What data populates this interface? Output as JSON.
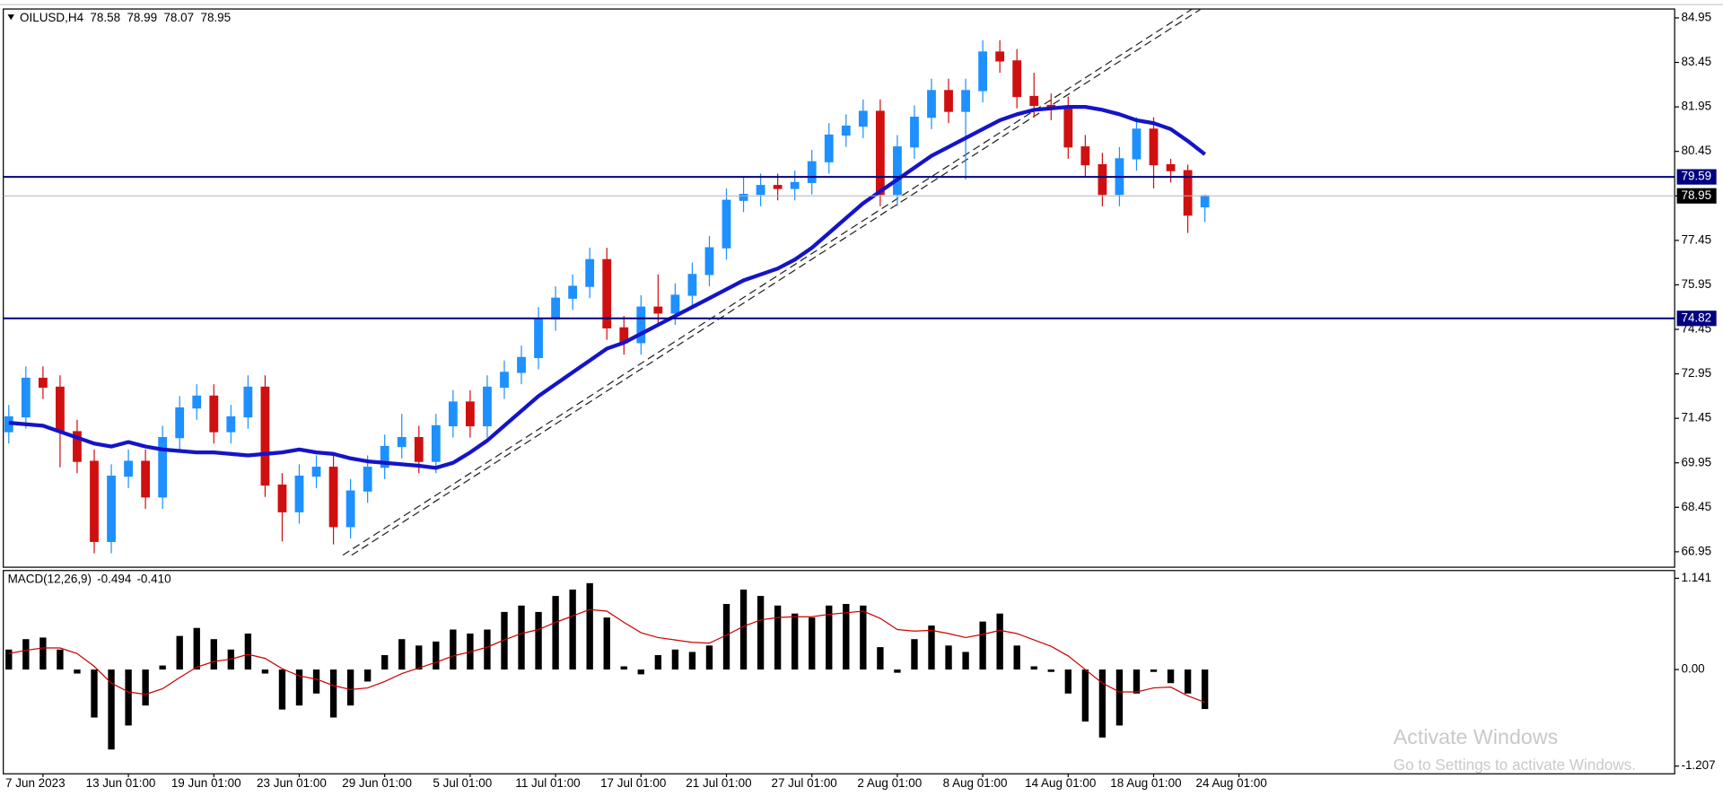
{
  "chart_data": [
    {
      "type": "candlestick",
      "title": "OILUSD,H4",
      "ohlc_header": [
        78.58,
        78.99,
        78.07,
        78.95
      ],
      "categories": [
        null,
        null,
        "7 Jun 2023",
        null,
        null,
        null,
        null,
        "13 Jun 01:00",
        null,
        null,
        null,
        null,
        "19 Jun 01:00",
        null,
        null,
        null,
        null,
        "23 Jun 01:00",
        null,
        null,
        null,
        null,
        "29 Jun 01:00",
        null,
        null,
        null,
        null,
        "5 Jul 01:00",
        null,
        null,
        null,
        null,
        "11 Jul 01:00",
        null,
        null,
        null,
        null,
        "17 Jul 01:00",
        null,
        null,
        null,
        null,
        "21 Jul 01:00",
        null,
        null,
        null,
        null,
        "27 Jul 01:00",
        null,
        null,
        null,
        null,
        "2 Aug 01:00",
        null,
        null,
        null,
        null,
        "8 Aug 01:00",
        null,
        null,
        null,
        null,
        "14 Aug 01:00",
        null,
        null,
        null,
        null,
        "18 Aug 01:00",
        null,
        null,
        null,
        null,
        "24 Aug 01:00"
      ],
      "open": [
        71.0,
        71.5,
        72.8,
        72.5,
        71.0,
        70.0,
        67.3,
        69.5,
        70.0,
        68.8,
        70.8,
        71.8,
        72.2,
        71.0,
        71.5,
        72.5,
        69.2,
        68.3,
        69.5,
        69.8,
        67.8,
        69.0,
        69.8,
        70.5,
        70.8,
        70.0,
        71.2,
        72.0,
        71.2,
        72.5,
        73.0,
        73.5,
        74.8,
        75.5,
        75.9,
        76.8,
        74.5,
        74.0,
        75.2,
        75.0,
        75.6,
        76.3,
        77.2,
        78.8,
        79.0,
        79.3,
        79.2,
        79.4,
        80.1,
        81.0,
        81.3,
        81.8,
        79.0,
        80.6,
        81.6,
        82.5,
        81.8,
        82.5,
        83.8,
        83.5,
        82.3,
        82.0,
        81.9,
        80.6,
        80.0,
        79.0,
        80.2,
        81.2,
        80.0,
        79.8,
        78.58,
        null,
        null
      ],
      "high": [
        71.9,
        73.2,
        73.2,
        72.9,
        71.4,
        70.4,
        69.9,
        70.4,
        70.4,
        71.2,
        72.2,
        72.6,
        72.6,
        71.9,
        72.9,
        72.9,
        69.6,
        69.9,
        70.2,
        70.2,
        69.4,
        70.2,
        70.9,
        71.6,
        71.2,
        71.6,
        72.4,
        72.4,
        72.9,
        73.4,
        73.9,
        75.2,
        75.9,
        76.3,
        77.2,
        77.2,
        74.9,
        75.6,
        76.3,
        76.0,
        76.7,
        77.6,
        79.2,
        79.6,
        79.7,
        79.7,
        79.8,
        80.5,
        81.4,
        81.7,
        82.2,
        82.2,
        81.0,
        82.0,
        82.9,
        82.9,
        82.9,
        84.2,
        84.2,
        83.9,
        83.1,
        82.4,
        82.3,
        81.0,
        80.4,
        80.6,
        81.6,
        81.6,
        80.2,
        80.0,
        78.99,
        null,
        null
      ],
      "low": [
        70.6,
        71.1,
        72.1,
        69.8,
        69.6,
        66.9,
        66.9,
        69.1,
        68.4,
        68.4,
        70.4,
        71.4,
        70.6,
        70.6,
        71.1,
        68.8,
        67.3,
        67.9,
        69.1,
        67.2,
        67.4,
        68.6,
        69.4,
        70.1,
        69.6,
        69.6,
        70.8,
        70.8,
        70.8,
        72.1,
        72.6,
        73.1,
        74.4,
        75.1,
        75.5,
        74.1,
        73.6,
        73.6,
        74.6,
        74.6,
        75.2,
        75.9,
        76.8,
        78.4,
        78.6,
        78.8,
        78.8,
        79.0,
        79.7,
        80.6,
        80.9,
        78.6,
        78.6,
        80.2,
        81.2,
        81.4,
        79.5,
        82.1,
        83.1,
        81.9,
        81.6,
        81.5,
        80.2,
        79.6,
        78.6,
        78.6,
        79.8,
        79.2,
        79.4,
        77.7,
        78.07,
        null,
        null
      ],
      "close": [
        71.5,
        72.8,
        72.5,
        71.0,
        70.0,
        67.3,
        69.5,
        70.0,
        68.8,
        70.8,
        71.8,
        72.2,
        71.0,
        71.5,
        72.5,
        69.2,
        68.3,
        69.5,
        69.8,
        67.8,
        69.0,
        69.8,
        70.5,
        70.8,
        70.0,
        71.2,
        72.0,
        71.2,
        72.5,
        73.0,
        73.5,
        74.8,
        75.5,
        75.9,
        76.8,
        74.5,
        74.0,
        75.2,
        75.0,
        75.6,
        76.3,
        77.2,
        78.8,
        79.0,
        79.3,
        79.2,
        79.4,
        80.1,
        81.0,
        81.3,
        81.8,
        79.0,
        80.6,
        81.6,
        82.5,
        81.8,
        82.5,
        83.8,
        83.5,
        82.3,
        82.0,
        81.9,
        80.6,
        80.0,
        79.0,
        80.2,
        81.2,
        80.0,
        79.8,
        78.3,
        78.95,
        null,
        null
      ],
      "up_color": "#1e90ff",
      "down_color": "#d01010",
      "series": [
        {
          "color": "#1414c8",
          "values": [
            71.3,
            71.25,
            71.2,
            71.0,
            70.8,
            70.6,
            70.5,
            70.65,
            70.5,
            70.4,
            70.35,
            70.3,
            70.3,
            70.25,
            70.2,
            70.25,
            70.3,
            70.4,
            70.3,
            70.25,
            70.1,
            70.0,
            69.95,
            69.9,
            69.85,
            69.78,
            69.95,
            70.3,
            70.7,
            71.2,
            71.7,
            72.2,
            72.6,
            73.0,
            73.4,
            73.8,
            74.0,
            74.3,
            74.6,
            74.9,
            75.2,
            75.5,
            75.8,
            76.1,
            76.3,
            76.5,
            76.8,
            77.2,
            77.7,
            78.2,
            78.7,
            79.1,
            79.5,
            79.9,
            80.3,
            80.6,
            80.9,
            81.2,
            81.5,
            81.7,
            81.85,
            81.9,
            81.95,
            81.95,
            81.85,
            81.7,
            81.5,
            81.4,
            81.2,
            80.8,
            80.35,
            null,
            null
          ]
        }
      ],
      "hlines": [
        {
          "value": 79.59,
          "color": "#000080"
        },
        {
          "value": 74.82,
          "color": "#000080"
        }
      ],
      "ylim": [
        66.43,
        85.25
      ],
      "yticks": [
        84.95,
        83.45,
        81.95,
        80.45,
        78.95,
        77.45,
        75.95,
        74.45,
        72.95,
        71.45,
        69.95,
        68.45,
        66.95
      ]
    },
    {
      "type": "macd",
      "title": "MACD(12,26,9)",
      "header": [
        -0.494,
        {
          "value": -0.41,
          "label": "-0.410"
        }
      ],
      "series": [
        {
          "color": "#000000",
          "values": [
            0.25,
            0.38,
            0.4,
            0.25,
            -0.05,
            -0.6,
            -1.0,
            -0.7,
            -0.45,
            0.05,
            0.42,
            0.52,
            0.38,
            0.25,
            0.45,
            -0.05,
            -0.5,
            -0.45,
            -0.3,
            -0.6,
            -0.45,
            -0.15,
            0.18,
            0.38,
            0.3,
            0.35,
            0.5,
            0.45,
            0.5,
            0.72,
            0.8,
            0.72,
            0.92,
            1.0,
            1.08,
            0.65,
            0.04,
            -0.06,
            0.18,
            0.25,
            0.22,
            0.3,
            0.82,
            1.0,
            0.92,
            0.8,
            0.7,
            0.65,
            0.8,
            0.82,
            0.8,
            0.28,
            -0.04,
            0.38,
            0.55,
            0.3,
            0.22,
            0.6,
            0.7,
            0.3,
            0.04,
            -0.03,
            -0.3,
            -0.65,
            -0.85,
            -0.7,
            -0.3,
            -0.03,
            -0.17,
            -0.3,
            -0.494,
            null,
            null
          ]
        },
        {
          "color": "#cc0000",
          "values": [
            0.2,
            0.24,
            0.27,
            0.27,
            0.2,
            0.04,
            -0.17,
            -0.28,
            -0.31,
            -0.24,
            -0.1,
            0.03,
            0.1,
            0.13,
            0.19,
            0.14,
            0.01,
            -0.08,
            -0.12,
            -0.2,
            -0.25,
            -0.23,
            -0.15,
            -0.05,
            0.02,
            0.09,
            0.17,
            0.22,
            0.28,
            0.37,
            0.45,
            0.5,
            0.59,
            0.67,
            0.75,
            0.73,
            0.59,
            0.46,
            0.4,
            0.37,
            0.34,
            0.33,
            0.43,
            0.54,
            0.62,
            0.65,
            0.66,
            0.66,
            0.69,
            0.71,
            0.73,
            0.64,
            0.5,
            0.48,
            0.49,
            0.45,
            0.4,
            0.44,
            0.49,
            0.45,
            0.37,
            0.29,
            0.17,
            0,
            -0.17,
            -0.28,
            -0.28,
            -0.23,
            -0.22,
            -0.33,
            -0.41,
            null,
            null
          ]
        }
      ],
      "ylim": [
        -1.304,
        1.238
      ],
      "yticks": [
        1.141,
        {
          "value": 0,
          "label": "0.00"
        },
        -1.207
      ]
    }
  ],
  "watermark": {
    "title": "Activate Windows",
    "subtitle": "Go to Settings to activate Windows."
  }
}
